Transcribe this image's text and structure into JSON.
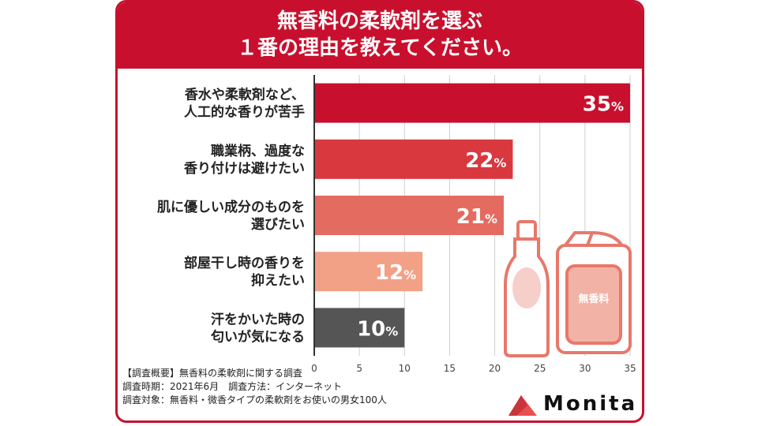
{
  "title": {
    "line1": "無香料の柔軟剤を選ぶ",
    "line2": "１番の理由を教えてください。"
  },
  "chart_data": {
    "type": "bar",
    "orientation": "horizontal",
    "categories": [
      [
        "香水や柔軟剤など、",
        "人工的な香りが苦手"
      ],
      [
        "職業柄、過度な",
        "香り付けは避けたい"
      ],
      [
        "肌に優しい成分のものを",
        "選びたい"
      ],
      [
        "部屋干し時の香りを",
        "抑えたい"
      ],
      [
        "汗をかいた時の",
        "匂いが気になる"
      ]
    ],
    "values": [
      35,
      22,
      21,
      12,
      10
    ],
    "value_suffix": "%",
    "colors": [
      "#c8102e",
      "#d9383f",
      "#e46b5f",
      "#f2a187",
      "#555555"
    ],
    "xlim": [
      0,
      35
    ],
    "xticks": [
      0,
      5,
      10,
      15,
      20,
      25,
      30,
      35
    ],
    "grid": true
  },
  "illustration": {
    "bottle_label": "無香料"
  },
  "notes": [
    "【調査概要】無香料の柔軟剤に関する調査",
    "調査時期：2021年6月　調査方法：インターネット",
    "調査対象：無香料・微香タイプの柔軟剤をお使いの男女100人"
  ],
  "brand": {
    "name": "Monita",
    "accent_color": "#e8504f"
  }
}
